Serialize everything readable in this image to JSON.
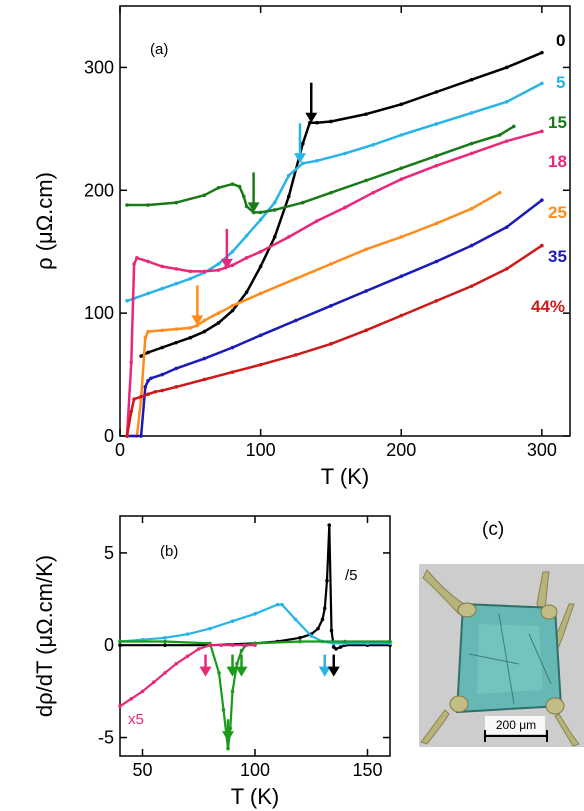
{
  "chart_data": [
    {
      "panel": "(a)",
      "type": "line",
      "xlabel": "T (K)",
      "ylabel": "ρ (μΩ.cm)",
      "xlim": [
        0,
        320
      ],
      "ylim": [
        0,
        350
      ],
      "xticks": [
        0,
        100,
        200,
        300
      ],
      "yticks": [
        0,
        100,
        200,
        300
      ],
      "series": [
        {
          "name": "0",
          "color": "#000000",
          "x": [
            15,
            20,
            30,
            40,
            50,
            60,
            70,
            80,
            90,
            100,
            110,
            120,
            130,
            135,
            140,
            150,
            175,
            200,
            225,
            250,
            275,
            300
          ],
          "y": [
            65,
            68,
            72,
            76,
            80,
            85,
            92,
            102,
            117,
            138,
            162,
            195,
            238,
            255,
            255,
            256,
            262,
            270,
            280,
            290,
            300,
            312
          ]
        },
        {
          "name": "5",
          "color": "#27b4e6",
          "x": [
            5,
            10,
            20,
            30,
            40,
            50,
            60,
            70,
            80,
            90,
            100,
            110,
            120,
            130,
            140,
            160,
            180,
            200,
            225,
            250,
            275,
            300
          ],
          "y": [
            110,
            112,
            116,
            120,
            124,
            128,
            133,
            140,
            150,
            163,
            176,
            190,
            212,
            222,
            224,
            230,
            237,
            245,
            254,
            263,
            272,
            287
          ]
        },
        {
          "name": "15",
          "color": "#1a7a1a",
          "x": [
            5,
            20,
            40,
            60,
            70,
            80,
            85,
            88,
            90,
            95,
            100,
            110,
            130,
            150,
            175,
            200,
            225,
            250,
            270,
            280
          ],
          "y": [
            188,
            188,
            190,
            196,
            202,
            205,
            203,
            195,
            187,
            182,
            182,
            184,
            190,
            198,
            208,
            218,
            228,
            238,
            245,
            252
          ]
        },
        {
          "name": "18",
          "color": "#e8287a",
          "x": [
            5,
            8,
            10,
            12,
            20,
            30,
            40,
            50,
            60,
            70,
            75,
            80,
            90,
            100,
            120,
            140,
            160,
            180,
            200,
            225,
            250,
            275,
            300
          ],
          "y": [
            0,
            60,
            140,
            145,
            142,
            138,
            136,
            134,
            134,
            135,
            137,
            139,
            145,
            150,
            162,
            175,
            186,
            198,
            209,
            220,
            230,
            240,
            248
          ]
        },
        {
          "name": "25",
          "color": "#ff8c1a",
          "x": [
            5,
            12,
            15,
            18,
            20,
            30,
            40,
            50,
            55,
            60,
            70,
            80,
            100,
            125,
            150,
            175,
            200,
            225,
            250,
            270
          ],
          "y": [
            0,
            0,
            30,
            80,
            85,
            86,
            87,
            88,
            90,
            94,
            100,
            106,
            116,
            128,
            140,
            152,
            162,
            173,
            185,
            198
          ]
        },
        {
          "name": "35",
          "color": "#1a1ab8",
          "x": [
            5,
            15,
            18,
            20,
            22,
            30,
            40,
            60,
            80,
            100,
            125,
            150,
            175,
            200,
            225,
            250,
            275,
            300
          ],
          "y": [
            0,
            0,
            40,
            45,
            47,
            50,
            55,
            63,
            72,
            82,
            94,
            106,
            118,
            130,
            142,
            155,
            170,
            192
          ]
        },
        {
          "name": "44%",
          "color": "#cc1a1a",
          "x": [
            5,
            8,
            10,
            15,
            20,
            25,
            30,
            40,
            60,
            80,
            100,
            125,
            150,
            175,
            200,
            225,
            250,
            275,
            300
          ],
          "y": [
            0,
            20,
            30,
            32,
            34,
            36,
            37,
            40,
            46,
            52,
            58,
            66,
            75,
            86,
            98,
            110,
            122,
            136,
            155
          ]
        }
      ],
      "arrows": [
        {
          "x": 136,
          "y": 255,
          "color": "#000000"
        },
        {
          "x": 128,
          "y": 222,
          "color": "#27b4e6"
        },
        {
          "x": 95,
          "y": 182,
          "color": "#1a7a1a"
        },
        {
          "x": 76,
          "y": 136,
          "color": "#e8287a"
        },
        {
          "x": 55,
          "y": 90,
          "color": "#ff8c1a"
        }
      ]
    },
    {
      "panel": "(b)",
      "type": "line",
      "xlabel": "T (K)",
      "ylabel": "dρ/dT (μΩ.cm/K)",
      "xlim": [
        40,
        160
      ],
      "ylim": [
        -6,
        7
      ],
      "xticks": [
        50,
        100,
        150
      ],
      "yticks": [
        -5,
        0,
        5
      ],
      "series": [
        {
          "color": "#000000",
          "annotation": "/5",
          "x": [
            40,
            60,
            80,
            100,
            110,
            120,
            125,
            128,
            130,
            131,
            132,
            133,
            134,
            135,
            136,
            138,
            140,
            150,
            160
          ],
          "y": [
            0,
            0,
            0,
            0.1,
            0.2,
            0.4,
            0.6,
            0.9,
            1.4,
            2,
            3.5,
            6.5,
            0.8,
            -0.1,
            -0.2,
            -0.1,
            0,
            0,
            0
          ]
        },
        {
          "color": "#27b4e6",
          "x": [
            40,
            50,
            60,
            70,
            80,
            90,
            100,
            110,
            112,
            118,
            125,
            130,
            135,
            140,
            150,
            160
          ],
          "y": [
            0.2,
            0.3,
            0.4,
            0.6,
            0.9,
            1.3,
            1.7,
            2.2,
            2.2,
            1.4,
            0.5,
            0.2,
            0.1,
            0.1,
            0.1,
            0.1
          ]
        },
        {
          "color": "#1a9a1a",
          "x": [
            40,
            60,
            80,
            84,
            86,
            88,
            89,
            90,
            92,
            94,
            96,
            100,
            120,
            140,
            160
          ],
          "y": [
            0.2,
            0.2,
            0.1,
            -1.5,
            -3.5,
            -5.6,
            -4.5,
            -2.5,
            -1,
            -0.3,
            0,
            0.1,
            0.2,
            0.2,
            0.2
          ]
        },
        {
          "color": "#e8287a",
          "annotation": "x5",
          "x": [
            40,
            45,
            50,
            55,
            60,
            65,
            70,
            75,
            80,
            85,
            90,
            95,
            100
          ],
          "y": [
            -3.3,
            -2.9,
            -2.5,
            -2.0,
            -1.5,
            -1.0,
            -0.6,
            -0.2,
            0,
            0,
            0,
            0,
            0
          ]
        }
      ],
      "arrows": [
        {
          "x": 78,
          "y": -1.7,
          "color": "#e8287a"
        },
        {
          "x": 88,
          "y": -5.2,
          "color": "#1a9a1a"
        },
        {
          "x": 90,
          "y": -1.7,
          "color": "#1a9a1a"
        },
        {
          "x": 94,
          "y": -1.7,
          "color": "#1a9a1a"
        },
        {
          "x": 131,
          "y": -1.7,
          "color": "#27b4e6"
        },
        {
          "x": 135,
          "y": -1.7,
          "color": "#000000"
        }
      ]
    }
  ],
  "panel_c": {
    "label": "(c)",
    "scalebar": "200 μm"
  }
}
